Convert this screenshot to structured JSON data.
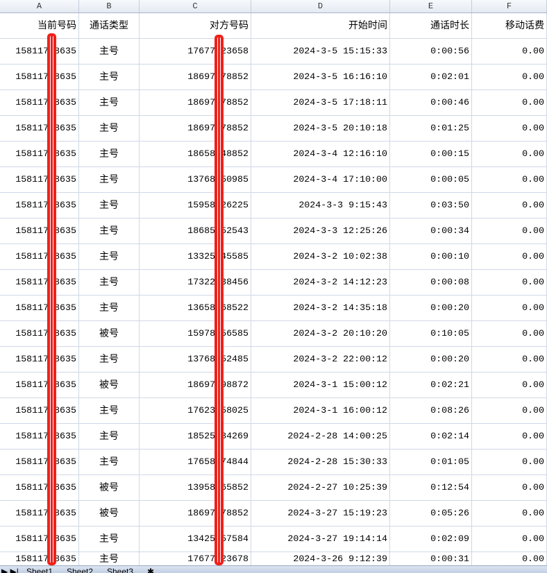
{
  "columns": [
    "A",
    "B",
    "C",
    "D",
    "E",
    "F"
  ],
  "headers": [
    "当前号码",
    "通话类型",
    "对方号码",
    "开始时间",
    "通话时长",
    "移动话费"
  ],
  "rows": [
    [
      "15811758635",
      "主号",
      "17677123658",
      "2024-3-5 15:15:33",
      "0:00:56",
      "0.00"
    ],
    [
      "15811758635",
      "主号",
      "18697378852",
      "2024-3-5 16:16:10",
      "0:02:01",
      "0.00"
    ],
    [
      "15811758635",
      "主号",
      "18697378852",
      "2024-3-5 17:18:11",
      "0:00:46",
      "0.00"
    ],
    [
      "15811758635",
      "主号",
      "18697378852",
      "2024-3-5 20:10:18",
      "0:01:25",
      "0.00"
    ],
    [
      "15811758635",
      "主号",
      "18658548852",
      "2024-3-4 12:16:10",
      "0:00:15",
      "0.00"
    ],
    [
      "15811758635",
      "主号",
      "13768250985",
      "2024-3-4 17:10:00",
      "0:00:05",
      "0.00"
    ],
    [
      "15811758635",
      "主号",
      "15958426225",
      "2024-3-3 9:15:43",
      "0:03:50",
      "0.00"
    ],
    [
      "15811758635",
      "主号",
      "18685552543",
      "2024-3-3 12:25:26",
      "0:00:34",
      "0.00"
    ],
    [
      "15811758635",
      "主号",
      "13325545585",
      "2024-3-2 10:02:38",
      "0:00:10",
      "0.00"
    ],
    [
      "15811758635",
      "主号",
      "17322538456",
      "2024-3-2 14:12:23",
      "0:00:08",
      "0.00"
    ],
    [
      "15811758635",
      "主号",
      "13658568522",
      "2024-3-2 14:35:18",
      "0:00:20",
      "0.00"
    ],
    [
      "15811758635",
      "被号",
      "15978156585",
      "2024-3-2 20:10:20",
      "0:10:05",
      "0.00"
    ],
    [
      "15811758635",
      "主号",
      "13768252485",
      "2024-3-2 22:00:12",
      "0:00:20",
      "0.00"
    ],
    [
      "15811758635",
      "被号",
      "18697598872",
      "2024-3-1 15:00:12",
      "0:02:21",
      "0.00"
    ],
    [
      "15811758635",
      "主号",
      "17623558025",
      "2024-3-1 16:00:12",
      "0:08:26",
      "0.00"
    ],
    [
      "15811758635",
      "主号",
      "18525584269",
      "2024-2-28 14:00:25",
      "0:02:14",
      "0.00"
    ],
    [
      "15811758635",
      "主号",
      "17658474844",
      "2024-2-28 15:30:33",
      "0:01:05",
      "0.00"
    ],
    [
      "15811758635",
      "被号",
      "13958265852",
      "2024-2-27 10:25:39",
      "0:12:54",
      "0.00"
    ],
    [
      "15811758635",
      "被号",
      "18697378852",
      "2024-3-27 15:19:23",
      "0:05:26",
      "0.00"
    ],
    [
      "15811758635",
      "主号",
      "13425557584",
      "2024-3-27 19:14:14",
      "0:02:09",
      "0.00"
    ],
    [
      "15811758635",
      "主号",
      "17677123678",
      "2024-3-26 9:12:39",
      "0:00:31",
      "0.00"
    ]
  ],
  "sheet_tabs": [
    "Sheet1",
    "Sheet2",
    "Sheet3"
  ],
  "redaction_color": "#f0201a"
}
